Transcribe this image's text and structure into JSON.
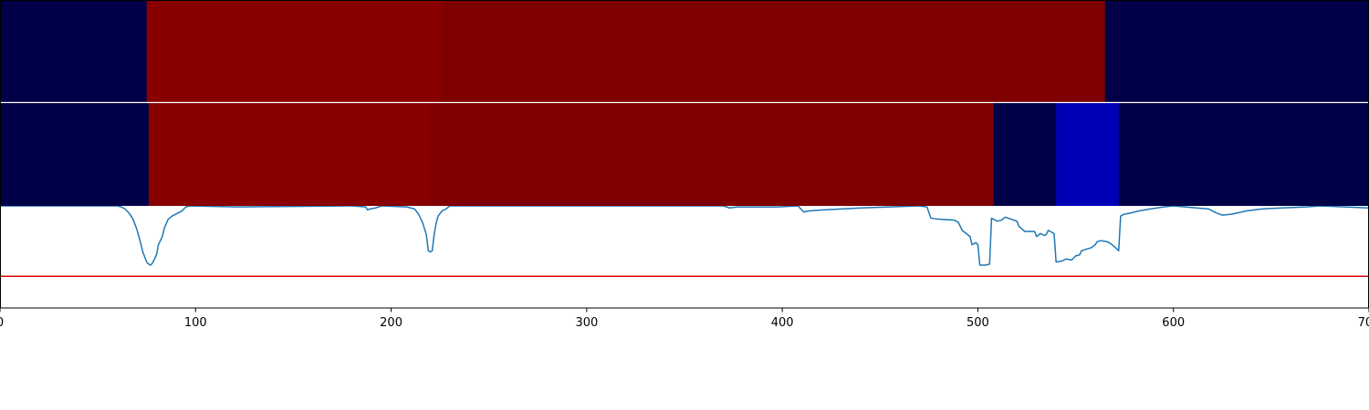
{
  "chart_data": [
    {
      "type": "heatmap",
      "xlim": [
        0,
        700
      ],
      "colors": {
        "low": "#000048",
        "high_a": "#880000",
        "high_b": "#7f0000"
      },
      "segments": [
        {
          "x0": 0,
          "x1": 75,
          "color": "#000048"
        },
        {
          "x0": 75,
          "x1": 226,
          "color": "#880000"
        },
        {
          "x0": 226,
          "x1": 565,
          "color": "#7f0000"
        },
        {
          "x0": 565,
          "x1": 700,
          "color": "#000048"
        }
      ]
    },
    {
      "type": "heatmap",
      "xlim": [
        0,
        700
      ],
      "colors": {
        "low": "#000048",
        "high_a": "#880000",
        "high_b": "#7f0000",
        "mid": "#0000b6"
      },
      "segments": [
        {
          "x0": 0,
          "x1": 76,
          "color": "#000048"
        },
        {
          "x0": 76,
          "x1": 220,
          "color": "#880000"
        },
        {
          "x0": 220,
          "x1": 508,
          "color": "#7f0000"
        },
        {
          "x0": 508,
          "x1": 540,
          "color": "#000048"
        },
        {
          "x0": 540,
          "x1": 572,
          "color": "#0000b6"
        },
        {
          "x0": 572,
          "x1": 700,
          "color": "#000048"
        }
      ]
    },
    {
      "type": "line",
      "xlim": [
        0,
        700
      ],
      "ylim": [
        0,
        1
      ],
      "xticks": [
        0,
        100,
        200,
        300,
        400,
        500,
        600,
        700
      ],
      "xtick_labels": [
        "0",
        "100",
        "200",
        "300",
        "400",
        "500",
        "600",
        "700"
      ],
      "threshold": {
        "y": 0.31,
        "color": "#e00000"
      },
      "series": [
        {
          "color": "#1f77b4",
          "points": [
            [
              0,
              1.0
            ],
            [
              60,
              1.0
            ],
            [
              62,
              0.99
            ],
            [
              64,
              0.97
            ],
            [
              66,
              0.93
            ],
            [
              68,
              0.87
            ],
            [
              70,
              0.77
            ],
            [
              72,
              0.63
            ],
            [
              73,
              0.55
            ],
            [
              74,
              0.5
            ],
            [
              75,
              0.45
            ],
            [
              76,
              0.43
            ],
            [
              77,
              0.42
            ],
            [
              78,
              0.44
            ],
            [
              80,
              0.52
            ],
            [
              81,
              0.62
            ],
            [
              83,
              0.7
            ],
            [
              84,
              0.78
            ],
            [
              86,
              0.87
            ],
            [
              88,
              0.9
            ],
            [
              90,
              0.92
            ],
            [
              93,
              0.95
            ],
            [
              95,
              0.99
            ],
            [
              97,
              1.0
            ],
            [
              122,
              0.99
            ],
            [
              180,
              1.0
            ],
            [
              187,
              0.99
            ],
            [
              188,
              0.96
            ],
            [
              189,
              0.97
            ],
            [
              192,
              0.98
            ],
            [
              195,
              1.0
            ],
            [
              208,
              0.99
            ],
            [
              212,
              0.97
            ],
            [
              214,
              0.92
            ],
            [
              216,
              0.84
            ],
            [
              218,
              0.72
            ],
            [
              219,
              0.56
            ],
            [
              220,
              0.55
            ],
            [
              221,
              0.56
            ],
            [
              222,
              0.72
            ],
            [
              223,
              0.83
            ],
            [
              224,
              0.9
            ],
            [
              226,
              0.95
            ],
            [
              228,
              0.97
            ],
            [
              230,
              1.0
            ],
            [
              370,
              1.0
            ],
            [
              373,
              0.98
            ],
            [
              377,
              0.99
            ],
            [
              398,
              0.99
            ],
            [
              408,
              1.0
            ],
            [
              411,
              0.94
            ],
            [
              413,
              0.95
            ],
            [
              420,
              0.96
            ],
            [
              440,
              0.98
            ],
            [
              455,
              0.99
            ],
            [
              470,
              1.0
            ],
            [
              474,
              0.99
            ],
            [
              476,
              0.88
            ],
            [
              480,
              0.87
            ],
            [
              488,
              0.86
            ],
            [
              490,
              0.84
            ],
            [
              492,
              0.76
            ],
            [
              496,
              0.7
            ],
            [
              497,
              0.62
            ],
            [
              499,
              0.64
            ],
            [
              500,
              0.62
            ],
            [
              501,
              0.42
            ],
            [
              504,
              0.42
            ],
            [
              506,
              0.43
            ],
            [
              507,
              0.88
            ],
            [
              510,
              0.85
            ],
            [
              512,
              0.86
            ],
            [
              514,
              0.89
            ],
            [
              517,
              0.87
            ],
            [
              520,
              0.85
            ],
            [
              521,
              0.8
            ],
            [
              524,
              0.75
            ],
            [
              529,
              0.75
            ],
            [
              530,
              0.7
            ],
            [
              532,
              0.73
            ],
            [
              534,
              0.71
            ],
            [
              535,
              0.72
            ],
            [
              536,
              0.76
            ],
            [
              538,
              0.74
            ],
            [
              539,
              0.73
            ],
            [
              540,
              0.45
            ],
            [
              543,
              0.46
            ],
            [
              545,
              0.48
            ],
            [
              548,
              0.47
            ],
            [
              550,
              0.51
            ],
            [
              552,
              0.52
            ],
            [
              553,
              0.56
            ],
            [
              556,
              0.58
            ],
            [
              558,
              0.59
            ],
            [
              560,
              0.62
            ],
            [
              561,
              0.65
            ],
            [
              563,
              0.66
            ],
            [
              566,
              0.65
            ],
            [
              568,
              0.63
            ],
            [
              571,
              0.58
            ],
            [
              572,
              0.56
            ],
            [
              573,
              0.9
            ],
            [
              575,
              0.92
            ],
            [
              578,
              0.93
            ],
            [
              582,
              0.95
            ],
            [
              588,
              0.97
            ],
            [
              595,
              0.99
            ],
            [
              600,
              1.0
            ],
            [
              612,
              0.98
            ],
            [
              618,
              0.97
            ],
            [
              622,
              0.93
            ],
            [
              625,
              0.91
            ],
            [
              630,
              0.92
            ],
            [
              637,
              0.95
            ],
            [
              645,
              0.97
            ],
            [
              655,
              0.98
            ],
            [
              668,
              0.99
            ],
            [
              675,
              1.0
            ],
            [
              700,
              0.98
            ]
          ]
        }
      ]
    }
  ]
}
